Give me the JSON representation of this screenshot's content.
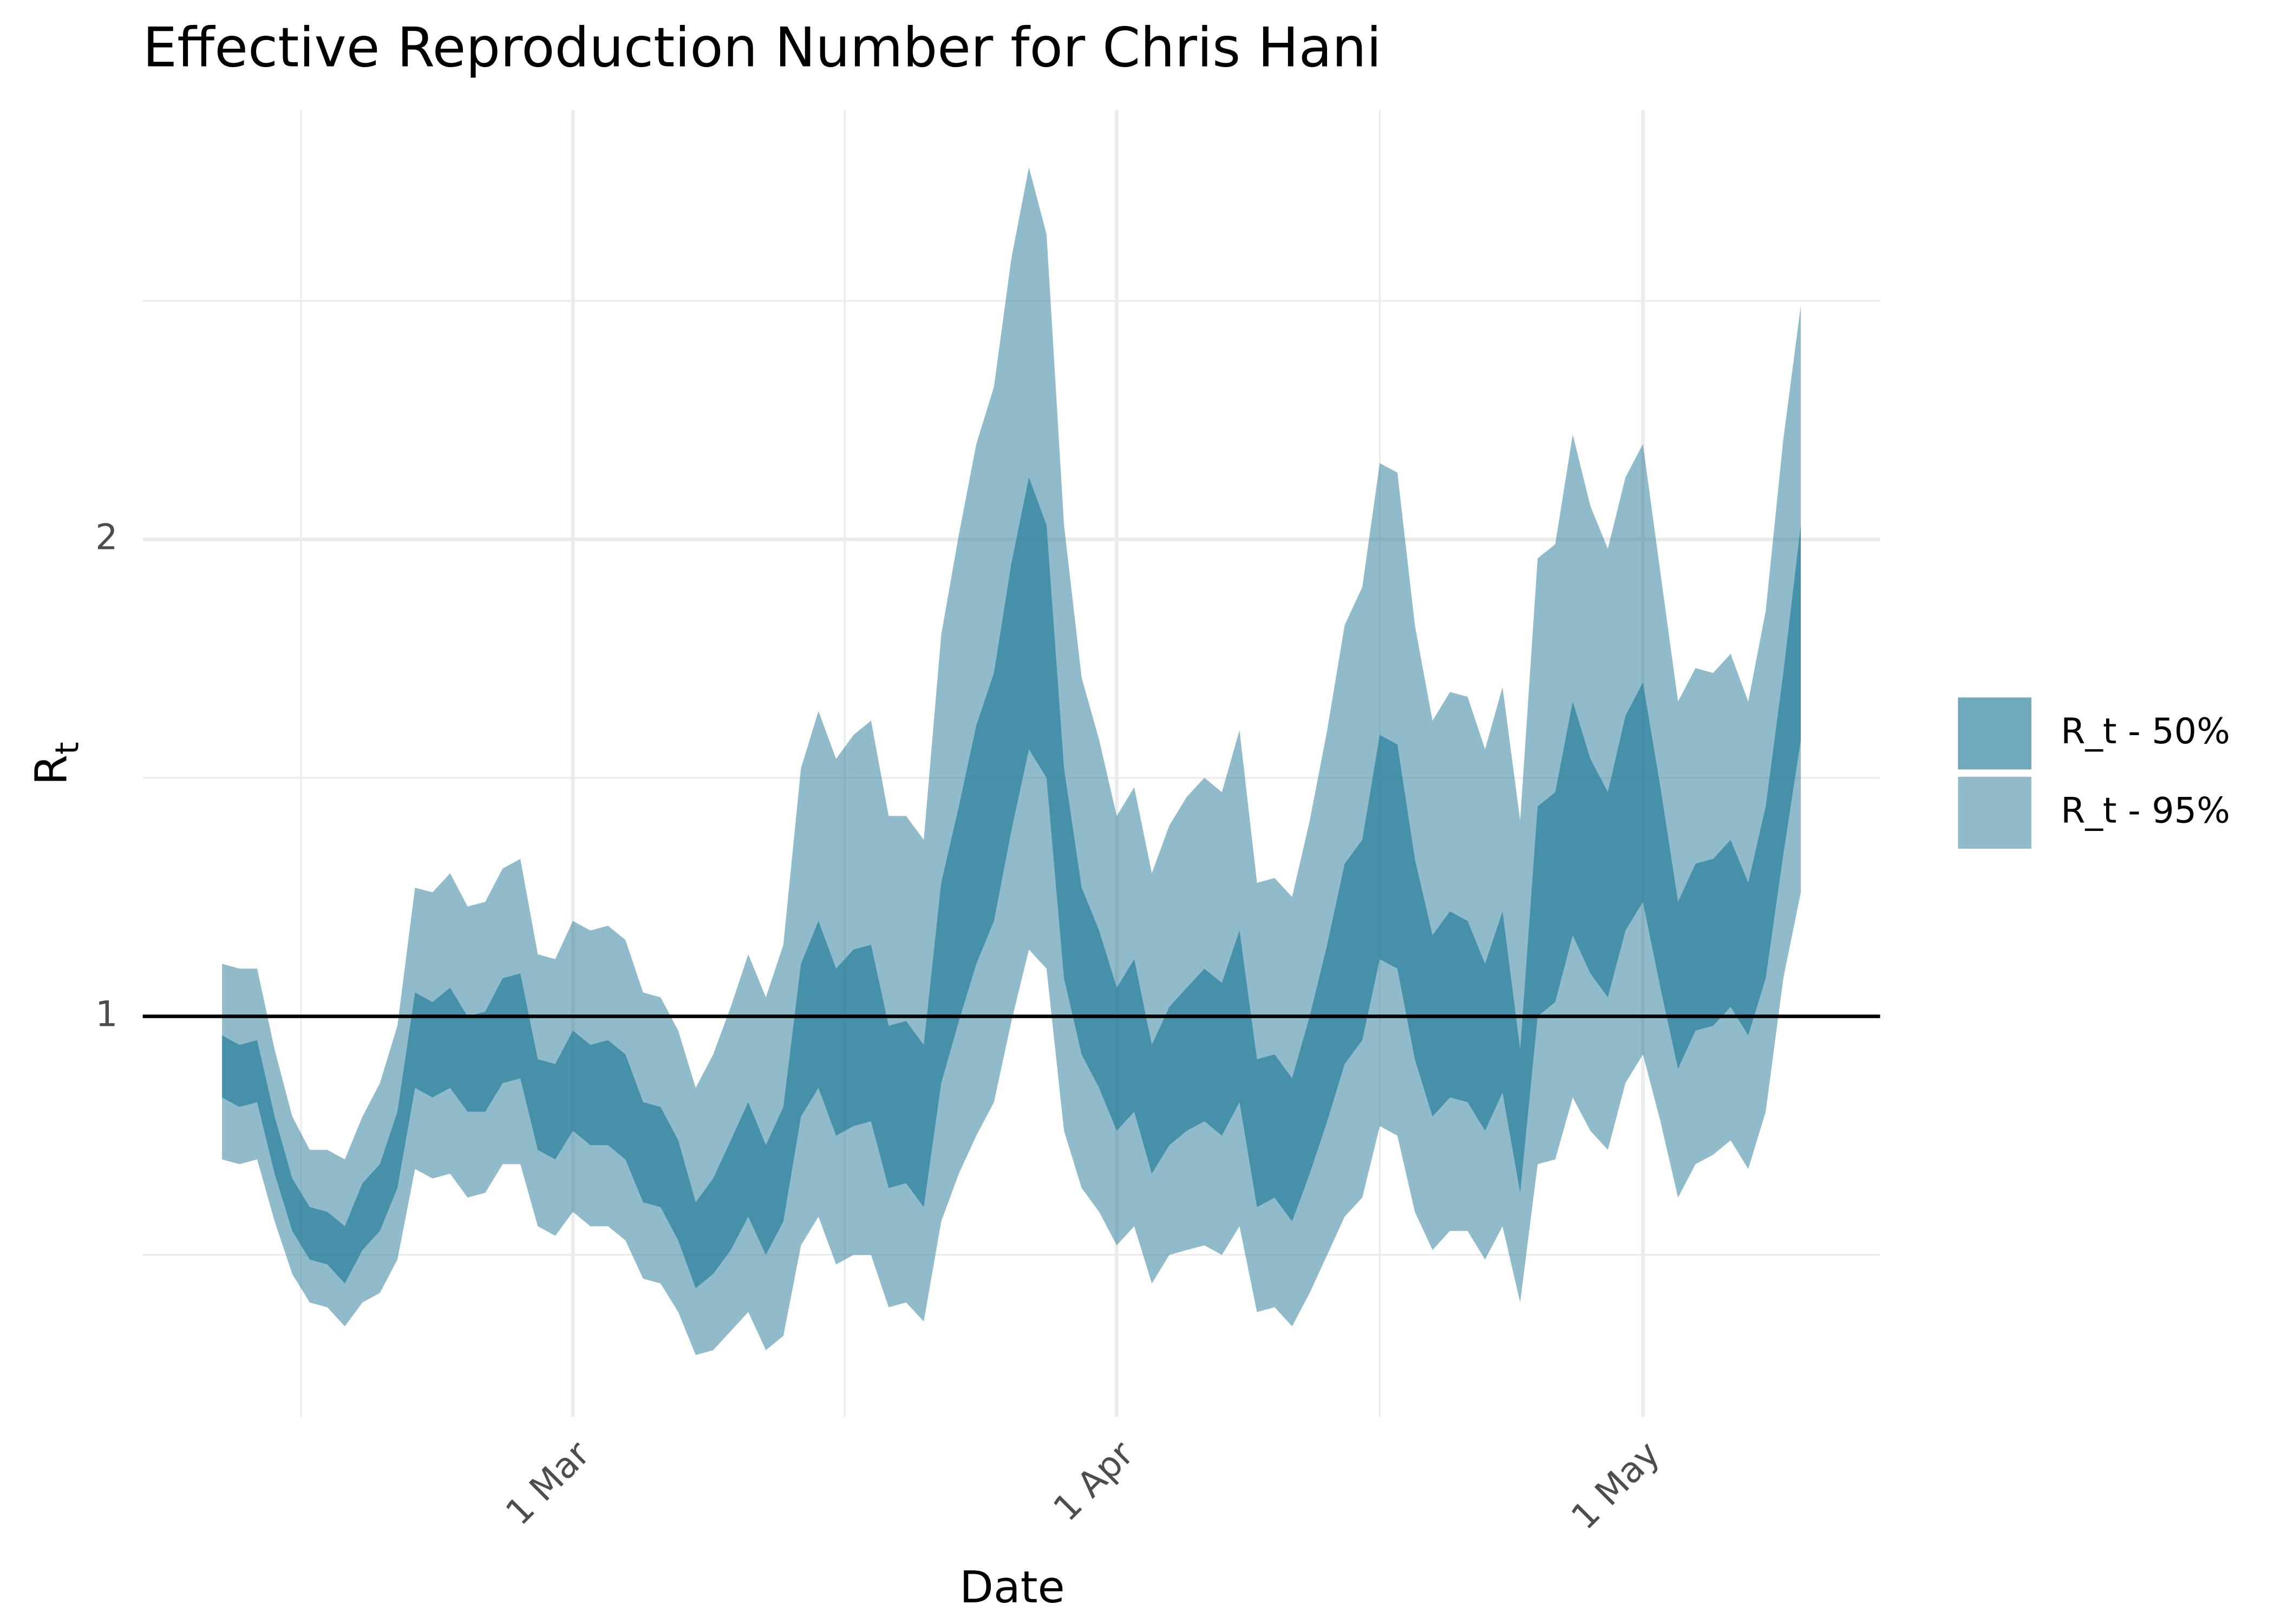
{
  "chart_data": {
    "type": "band",
    "title": "Effective Reproduction Number for Chris Hani",
    "xlabel": "Date",
    "ylabel": {
      "text": "R",
      "subscript": "t"
    },
    "categories": [
      null,
      null,
      null,
      null,
      null,
      null,
      null,
      null,
      null,
      null,
      null,
      null,
      null,
      null,
      null,
      null,
      null,
      null,
      null,
      null,
      "1 Mar",
      null,
      null,
      null,
      null,
      null,
      null,
      null,
      null,
      null,
      null,
      null,
      null,
      null,
      null,
      null,
      null,
      null,
      null,
      null,
      null,
      null,
      null,
      null,
      null,
      null,
      null,
      null,
      null,
      null,
      null,
      "1 Apr",
      null,
      null,
      null,
      null,
      null,
      null,
      null,
      null,
      null,
      null,
      null,
      null,
      null,
      null,
      null,
      null,
      null,
      null,
      null,
      null,
      null,
      null,
      null,
      null,
      null,
      null,
      null,
      null,
      null,
      "1 May",
      null,
      null,
      null,
      null,
      null,
      null,
      null,
      null,
      null
    ],
    "ylim": [
      0.16,
      2.9
    ],
    "yticks": [
      1,
      2
    ],
    "yminor": [
      0.5,
      1.5,
      2.5
    ],
    "grid": true,
    "hline": 1,
    "legend": "right",
    "series": [
      {
        "name": "R_t - 50%",
        "color": "#1f7896",
        "alpha": 0.64,
        "upper": [
          0.96,
          0.94,
          0.95,
          0.79,
          0.66,
          0.6,
          0.59,
          0.56,
          0.65,
          0.69,
          0.8,
          1.05,
          1.03,
          1.06,
          1.0,
          1.01,
          1.08,
          1.09,
          0.91,
          0.9,
          0.97,
          0.94,
          0.95,
          0.92,
          0.82,
          0.81,
          0.74,
          0.61,
          0.66,
          0.74,
          0.82,
          0.73,
          0.81,
          1.11,
          1.2,
          1.1,
          1.14,
          1.15,
          0.98,
          0.99,
          0.94,
          1.28,
          1.44,
          1.61,
          1.72,
          1.95,
          2.13,
          2.03,
          1.52,
          1.27,
          1.18,
          1.06,
          1.12,
          0.94,
          1.02,
          1.06,
          1.1,
          1.07,
          1.18,
          0.91,
          0.92,
          0.87,
          1.0,
          1.15,
          1.32,
          1.37,
          1.59,
          1.57,
          1.33,
          1.17,
          1.22,
          1.2,
          1.11,
          1.22,
          0.93,
          1.44,
          1.47,
          1.66,
          1.54,
          1.47,
          1.63,
          1.7,
          1.48,
          1.24,
          1.32,
          1.33,
          1.37,
          1.28,
          1.44,
          1.72,
          2.03
        ],
        "lower": [
          0.83,
          0.81,
          0.82,
          0.67,
          0.55,
          0.49,
          0.48,
          0.44,
          0.51,
          0.55,
          0.64,
          0.85,
          0.83,
          0.85,
          0.8,
          0.8,
          0.86,
          0.87,
          0.72,
          0.7,
          0.76,
          0.73,
          0.73,
          0.7,
          0.61,
          0.6,
          0.53,
          0.43,
          0.46,
          0.51,
          0.58,
          0.5,
          0.57,
          0.79,
          0.85,
          0.75,
          0.77,
          0.78,
          0.64,
          0.65,
          0.6,
          0.86,
          0.99,
          1.11,
          1.2,
          1.39,
          1.56,
          1.5,
          1.08,
          0.92,
          0.85,
          0.76,
          0.8,
          0.67,
          0.73,
          0.76,
          0.78,
          0.75,
          0.82,
          0.6,
          0.62,
          0.57,
          0.67,
          0.78,
          0.9,
          0.95,
          1.12,
          1.1,
          0.91,
          0.79,
          0.83,
          0.82,
          0.76,
          0.84,
          0.63,
          1.0,
          1.03,
          1.17,
          1.09,
          1.04,
          1.18,
          1.24,
          1.06,
          0.89,
          0.97,
          0.98,
          1.02,
          0.96,
          1.08,
          1.34,
          1.58
        ]
      },
      {
        "name": "R_t - 95%",
        "color": "#1f7896",
        "alpha": 0.5,
        "upper": [
          1.11,
          1.1,
          1.1,
          0.93,
          0.79,
          0.72,
          0.72,
          0.7,
          0.79,
          0.86,
          0.98,
          1.27,
          1.26,
          1.3,
          1.23,
          1.24,
          1.31,
          1.33,
          1.13,
          1.12,
          1.2,
          1.18,
          1.19,
          1.16,
          1.05,
          1.04,
          0.97,
          0.85,
          0.92,
          1.02,
          1.13,
          1.04,
          1.15,
          1.52,
          1.64,
          1.54,
          1.59,
          1.62,
          1.42,
          1.42,
          1.37,
          1.8,
          2.01,
          2.2,
          2.32,
          2.59,
          2.78,
          2.64,
          2.03,
          1.71,
          1.58,
          1.42,
          1.48,
          1.3,
          1.4,
          1.46,
          1.5,
          1.47,
          1.6,
          1.28,
          1.29,
          1.25,
          1.41,
          1.6,
          1.82,
          1.9,
          2.16,
          2.14,
          1.82,
          1.62,
          1.68,
          1.67,
          1.56,
          1.69,
          1.41,
          1.96,
          1.99,
          2.22,
          2.07,
          1.98,
          2.13,
          2.2,
          1.93,
          1.66,
          1.73,
          1.72,
          1.76,
          1.66,
          1.85,
          2.21,
          2.49
        ],
        "lower": [
          0.7,
          0.69,
          0.7,
          0.57,
          0.46,
          0.4,
          0.39,
          0.35,
          0.4,
          0.42,
          0.49,
          0.68,
          0.66,
          0.67,
          0.62,
          0.63,
          0.69,
          0.69,
          0.56,
          0.54,
          0.59,
          0.56,
          0.56,
          0.53,
          0.45,
          0.44,
          0.38,
          0.29,
          0.3,
          0.34,
          0.38,
          0.3,
          0.33,
          0.52,
          0.58,
          0.48,
          0.5,
          0.5,
          0.39,
          0.4,
          0.36,
          0.57,
          0.67,
          0.75,
          0.82,
          0.99,
          1.14,
          1.1,
          0.76,
          0.64,
          0.59,
          0.52,
          0.56,
          0.44,
          0.5,
          0.51,
          0.52,
          0.5,
          0.56,
          0.38,
          0.39,
          0.35,
          0.42,
          0.5,
          0.58,
          0.62,
          0.77,
          0.75,
          0.59,
          0.51,
          0.55,
          0.55,
          0.49,
          0.56,
          0.4,
          0.69,
          0.7,
          0.83,
          0.76,
          0.72,
          0.86,
          0.92,
          0.78,
          0.62,
          0.69,
          0.71,
          0.74,
          0.68,
          0.8,
          1.08,
          1.26
        ]
      }
    ]
  }
}
